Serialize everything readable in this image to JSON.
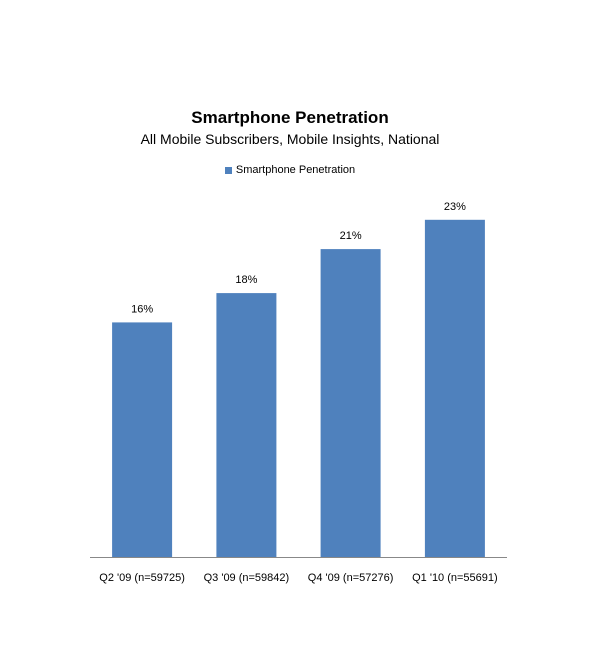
{
  "chart_data": {
    "type": "bar",
    "title": "Smartphone Penetration",
    "subtitle": "All Mobile Subscribers, Mobile Insights, National",
    "categories": [
      "Q2 '09 (n=59725)",
      "Q3 '09 (n=59842)",
      "Q4 '09 (n=57276)",
      "Q1 '10 (n=55691)"
    ],
    "series": [
      {
        "name": "Smartphone Penetration",
        "values": [
          16,
          18,
          21,
          23
        ],
        "labels": [
          "16%",
          "18%",
          "21%",
          "23%"
        ]
      }
    ],
    "unit": "%",
    "ylim": [
      0,
      26
    ],
    "grid": false,
    "legend_position": "top",
    "bar_color": "#4F81BD",
    "axis_color": "#888888"
  }
}
